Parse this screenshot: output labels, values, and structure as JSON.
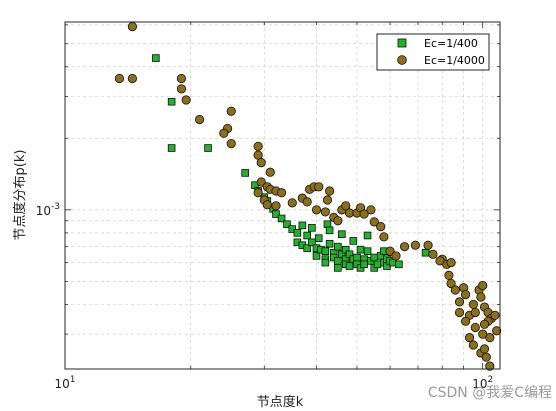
{
  "chart_data": {
    "type": "scatter",
    "xlabel": "节点度k",
    "ylabel": "节点度分布p(k)",
    "xscale": "log",
    "yscale": "log",
    "xlim": [
      10,
      110
    ],
    "ylim": [
      0.000214,
      0.00617
    ],
    "grid": true,
    "legend_position": "top-right",
    "x_tick_labels": [
      {
        "value": 10,
        "base": "10",
        "exp": "1"
      },
      {
        "value": 100,
        "base": "10",
        "exp": "2"
      }
    ],
    "y_tick_labels": [
      {
        "value": 0.001,
        "base": "10",
        "exp": "-3"
      }
    ],
    "series": [
      {
        "name": "Ec=1/400",
        "marker": "square",
        "color": "#22b22b",
        "points": [
          [
            16.5,
            0.00435
          ],
          [
            18,
            0.00285
          ],
          [
            18,
            0.00182
          ],
          [
            22,
            0.00182
          ],
          [
            27,
            0.00143
          ],
          [
            28.5,
            0.00127
          ],
          [
            29,
            0.0012
          ],
          [
            30,
            0.00113
          ],
          [
            30.5,
            0.00109
          ],
          [
            31.5,
            0.00101
          ],
          [
            32,
            0.00096
          ],
          [
            33,
            0.00092
          ],
          [
            34,
            0.00087
          ],
          [
            35,
            0.00083
          ],
          [
            36,
            0.0008
          ],
          [
            36,
            0.00073
          ],
          [
            37,
            0.00086
          ],
          [
            37,
            0.00071
          ],
          [
            38,
            0.00078
          ],
          [
            38,
            0.00069
          ],
          [
            39,
            0.00073
          ],
          [
            39,
            0.00084
          ],
          [
            40,
            0.00069
          ],
          [
            40,
            0.00064
          ],
          [
            40.5,
            0.00076
          ],
          [
            41,
            0.00068
          ],
          [
            42,
            0.00067
          ],
          [
            42,
            0.00062
          ],
          [
            42,
            0.0006
          ],
          [
            42.5,
            0.00087
          ],
          [
            43,
            0.00082
          ],
          [
            43,
            0.00072
          ],
          [
            44,
            0.00066
          ],
          [
            44,
            0.00063
          ],
          [
            45,
            0.0007
          ],
          [
            45,
            0.00061
          ],
          [
            45,
            0.00057
          ],
          [
            46,
            0.00079
          ],
          [
            46,
            0.00065
          ],
          [
            47,
            0.00068
          ],
          [
            47,
            0.00062
          ],
          [
            47,
            0.00059
          ],
          [
            48,
            0.00065
          ],
          [
            48,
            0.00058
          ],
          [
            49,
            0.00074
          ],
          [
            49,
            0.00062
          ],
          [
            50,
            0.00063
          ],
          [
            50,
            0.00059
          ],
          [
            51,
            0.00057
          ],
          [
            51,
            0.00068
          ],
          [
            52,
            0.00062
          ],
          [
            52,
            0.00059
          ],
          [
            53,
            0.00078
          ],
          [
            53,
            0.00067
          ],
          [
            54,
            0.00061
          ],
          [
            55,
            0.00063
          ],
          [
            55,
            0.00057
          ],
          [
            56,
            0.00059
          ],
          [
            57,
            0.00064
          ],
          [
            58,
            0.00067
          ],
          [
            58,
            0.0006
          ],
          [
            59,
            0.00062
          ],
          [
            59,
            0.00058
          ],
          [
            60,
            0.00061
          ],
          [
            61,
            0.0006
          ],
          [
            63,
            0.00059
          ],
          [
            73,
            0.00066
          ]
        ]
      },
      {
        "name": "Ec=1/4000",
        "marker": "circle",
        "color": "#8d6e1b",
        "points": [
          [
            14.5,
            0.0059
          ],
          [
            13.5,
            0.00357
          ],
          [
            14.5,
            0.00357
          ],
          [
            19,
            0.00357
          ],
          [
            19,
            0.00323
          ],
          [
            19.5,
            0.0029
          ],
          [
            21,
            0.0024
          ],
          [
            25,
            0.0026
          ],
          [
            24.5,
            0.0022
          ],
          [
            24,
            0.0021
          ],
          [
            25,
            0.0019
          ],
          [
            29,
            0.00185
          ],
          [
            29,
            0.0017
          ],
          [
            29.5,
            0.00158
          ],
          [
            31,
            0.00144
          ],
          [
            29.5,
            0.00131
          ],
          [
            30.5,
            0.00125
          ],
          [
            31,
            0.00122
          ],
          [
            32,
            0.0012
          ],
          [
            33,
            0.00118
          ],
          [
            29,
            0.00118
          ],
          [
            30,
            0.0011
          ],
          [
            30.5,
            0.00105
          ],
          [
            32,
            0.00104
          ],
          [
            35,
            0.00107
          ],
          [
            37,
            0.00112
          ],
          [
            38.5,
            0.00122
          ],
          [
            39.5,
            0.00125
          ],
          [
            40.5,
            0.00125
          ],
          [
            43,
            0.0012
          ],
          [
            38,
            0.00108
          ],
          [
            40,
            0.001
          ],
          [
            42.5,
            0.0011
          ],
          [
            42,
            0.00098
          ],
          [
            44,
            0.00093
          ],
          [
            45,
            0.0009
          ],
          [
            46,
            0.001
          ],
          [
            47,
            0.00104
          ],
          [
            48,
            0.00097
          ],
          [
            50,
            0.00097
          ],
          [
            51,
            0.00102
          ],
          [
            52,
            0.00096
          ],
          [
            54,
            0.001
          ],
          [
            55,
            0.00089
          ],
          [
            57,
            0.00085
          ],
          [
            58,
            0.00077
          ],
          [
            60,
            0.00067
          ],
          [
            62,
            0.00064
          ],
          [
            65,
            0.0007
          ],
          [
            69,
            0.00071
          ],
          [
            74,
            0.00071
          ],
          [
            76,
            0.00065
          ],
          [
            80,
            0.00062
          ],
          [
            82,
            0.00059
          ],
          [
            84,
            0.0006
          ],
          [
            79,
            0.00061
          ],
          [
            83,
            0.00053
          ],
          [
            84,
            0.00049
          ],
          [
            86,
            0.00046
          ],
          [
            88,
            0.00041
          ],
          [
            90,
            0.00047
          ],
          [
            91,
            0.00044
          ],
          [
            93,
            0.00036
          ],
          [
            95,
            0.0004
          ],
          [
            96,
            0.00037
          ],
          [
            98,
            0.00046
          ],
          [
            99,
            0.00043
          ],
          [
            100,
            0.00048
          ],
          [
            101,
            0.00039
          ],
          [
            103,
            0.00037
          ],
          [
            105,
            0.00035
          ],
          [
            107,
            0.00036
          ],
          [
            103,
            0.00034
          ],
          [
            101,
            0.00033
          ],
          [
            108,
            0.00031
          ],
          [
            104,
            0.00029
          ],
          [
            96,
            0.00032
          ],
          [
            100,
            0.0003
          ],
          [
            91,
            0.00034
          ],
          [
            88,
            0.00037
          ],
          [
            93,
            0.00029
          ],
          [
            95,
            0.00027
          ],
          [
            99,
            0.00025
          ],
          [
            101,
            0.00026
          ],
          [
            102,
            0.00024
          ],
          [
            104,
            0.00022
          ]
        ]
      }
    ]
  },
  "watermark": "CSDN @我爱C编程"
}
